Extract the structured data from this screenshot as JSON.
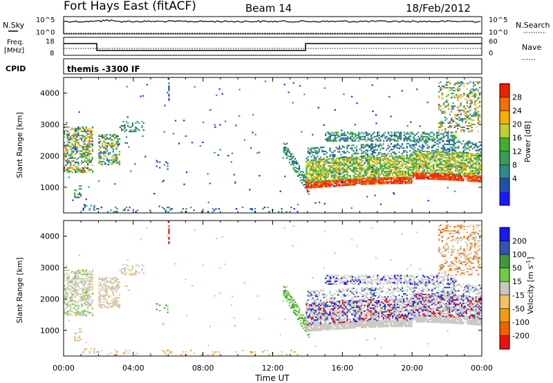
{
  "header": {
    "radar": "Fort Hays East (fitACF)",
    "beam": "Beam 14",
    "date": "18/Feb/2012"
  },
  "noise_panel": {
    "left_label": "N.Sky",
    "right_label": "N.Search",
    "left_ticks": [
      "10^5",
      "10^0"
    ],
    "right_ticks": [
      "10^5",
      "10^0"
    ]
  },
  "freq_panel": {
    "left_label_line1": "Freq.",
    "left_label_line2": "[MHz]",
    "right_label": "Nave",
    "left_ticks": [
      "18",
      "8"
    ],
    "right_ticks": [
      "60",
      "0"
    ]
  },
  "cpid_panel": {
    "label": "CPID",
    "text": "themis -3300 IF"
  },
  "axes": {
    "ylabel": "Slant Range [km]",
    "xlabel": "Time UT",
    "x_ticks": [
      "00:00",
      "04:00",
      "08:00",
      "12:00",
      "16:00",
      "20:00",
      "00:00"
    ],
    "y_ticks": [
      "4000",
      "3000",
      "2000",
      "1000"
    ]
  },
  "colors": {
    "power": [
      "#1a1aff",
      "#1f4fb0",
      "#2f8a8a",
      "#3c9a5a",
      "#3fb030",
      "#bfcf3a",
      "#f5b000",
      "#f07000",
      "#ee2000"
    ],
    "velocity": [
      "#ee1010",
      "#f06000",
      "#f49a10",
      "#f5c060",
      "#c8c8c0",
      "#70cc40",
      "#3c9a3c",
      "#2f55b0",
      "#1a1aee"
    ]
  },
  "chart_data": [
    {
      "type": "heatmap",
      "title": "Power",
      "colorbar_label": "Power [dB]",
      "colorbar_ticks": [
        "28",
        "24",
        "20",
        "16",
        "12",
        "8",
        "4"
      ],
      "xlim": [
        0,
        24
      ],
      "ylim": [
        180,
        4500
      ],
      "ylabel": "Slant Range [km]",
      "features": [
        {
          "t_start": 0.0,
          "t_end": 1.7,
          "range_low": 1700,
          "range_high": 2900,
          "level": "mixed"
        },
        {
          "t_start": 2.0,
          "t_end": 3.2,
          "range_low": 1800,
          "range_high": 2700,
          "level": "mixed"
        },
        {
          "t_start": 3.2,
          "t_end": 4.6,
          "range_low": 2800,
          "range_high": 3100,
          "level": "low"
        },
        {
          "t_start": 13.8,
          "t_end": 24.0,
          "range_low": 900,
          "range_high": 1600,
          "level": "high"
        },
        {
          "t_start": 14.0,
          "t_end": 24.0,
          "range_low": 1600,
          "range_high": 2300,
          "level": "medium"
        },
        {
          "t_start": 15.0,
          "t_end": 22.5,
          "range_low": 2500,
          "range_high": 2800,
          "level": "low"
        }
      ]
    },
    {
      "type": "heatmap",
      "title": "Velocity",
      "colorbar_label": "Velocity [m s^-1]",
      "colorbar_ticks": [
        "200",
        "100",
        "50",
        "15",
        "-15",
        "-50",
        "-100",
        "-200"
      ],
      "xlim": [
        0,
        24
      ],
      "ylim": [
        180,
        4500
      ],
      "ylabel": "Slant Range [km]",
      "xlabel": "Time UT"
    }
  ]
}
